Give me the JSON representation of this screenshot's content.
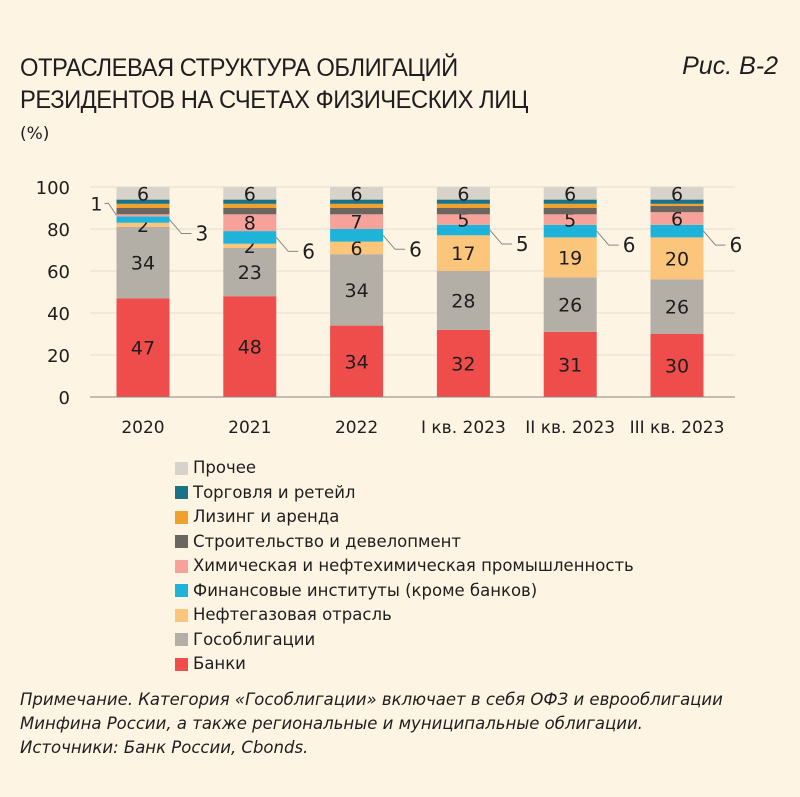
{
  "title_line1": "ОТРАСЛЕВАЯ СТРУКТУРА ОБЛИГАЦИЙ",
  "title_line2": "РЕЗИДЕНТОВ НА СЧЕТАХ ФИЗИЧЕСКИХ ЛИЦ",
  "figure_label": "Рис. В-2",
  "unit": "(%)",
  "note": "Примечание. Категория «Гособлигации» включает в себя ОФЗ и еврооблигации Минфина России, а также региональные и муниципальные облигации.",
  "sources": "Источники: Банк России, Cbonds.",
  "chart_data": {
    "type": "bar",
    "stacked": true,
    "ylim": [
      0,
      100
    ],
    "yticks": [
      "0",
      "20",
      "40",
      "60",
      "80",
      "100"
    ],
    "grid": true,
    "legend_placement": "bottom",
    "categories": [
      "2020",
      "2021",
      "2022",
      "I кв. 2023",
      "II кв. 2023",
      "III кв. 2023"
    ],
    "series": [
      {
        "name": "Банки",
        "color": "#ee4d4b",
        "values": [
          47,
          48,
          34,
          32,
          31,
          30
        ]
      },
      {
        "name": "Гособлигации",
        "color": "#b3afa7",
        "values": [
          34,
          23,
          34,
          28,
          26,
          26
        ]
      },
      {
        "name": "Нефтегазовая отрасль",
        "color": "#fbc57c",
        "values": [
          2,
          2,
          6,
          17,
          19,
          20
        ]
      },
      {
        "name": "Финансовые институты (кроме банков)",
        "color": "#1fb3d9",
        "values": [
          3,
          6,
          6,
          5,
          6,
          6
        ]
      },
      {
        "name": "Химическая и нефтехимическая промышленность",
        "color": "#f6a29b",
        "values": [
          1,
          8,
          7,
          5,
          5,
          6
        ]
      },
      {
        "name": "Строительство и девелопмент",
        "color": "#6a655f",
        "values": [
          3,
          3,
          3,
          3,
          3,
          3
        ]
      },
      {
        "name": "Лизинг и аренда",
        "color": "#f0a02c",
        "values": [
          2,
          2,
          2,
          2,
          2,
          1
        ]
      },
      {
        "name": "Торговля и ретейл",
        "color": "#1b7285",
        "values": [
          2,
          2,
          2,
          2,
          2,
          2
        ]
      },
      {
        "name": "Прочее",
        "color": "#d7d2ca",
        "values": [
          6,
          6,
          6,
          6,
          6,
          6
        ]
      }
    ],
    "data_labels": {
      "Банки": [
        "47",
        "48",
        "34",
        "32",
        "31",
        "30"
      ],
      "Гособлигации": [
        "34",
        "23",
        "34",
        "28",
        "26",
        "26"
      ],
      "Нефтегазовая отрасль": [
        "2",
        "2",
        "6",
        "17",
        "19",
        "20"
      ],
      "Финансовые институты (кроме банков)": [
        "3",
        "6",
        "6",
        "5",
        "6",
        "6"
      ],
      "Химическая и нефтехимическая промышленность": [
        "1",
        "8",
        "7",
        "5",
        "5",
        "6"
      ],
      "Прочее": [
        "6",
        "6",
        "6",
        "6",
        "6",
        "6"
      ]
    }
  }
}
